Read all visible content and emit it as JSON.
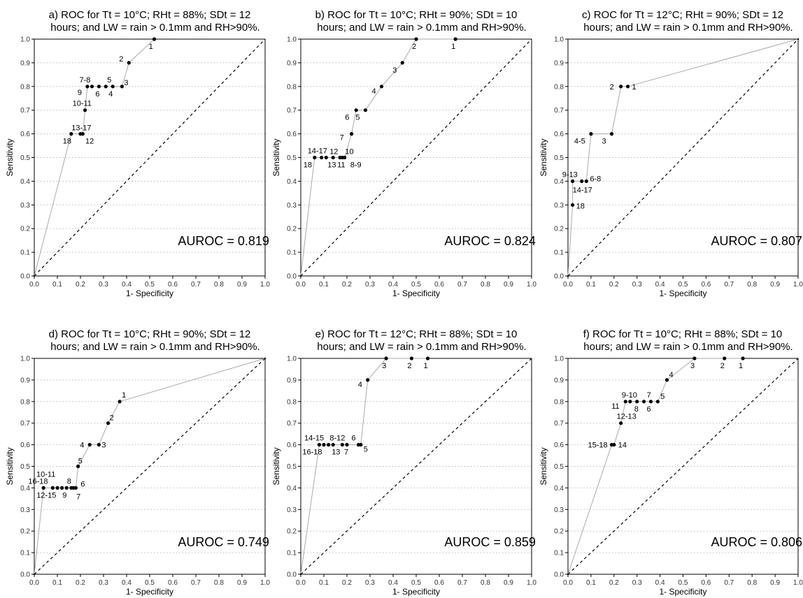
{
  "chart_data": [
    {
      "type": "scatter",
      "title_line1": "a) ROC for Tt = 10°C; RHt = 88%; SDt = 12",
      "title_line2": "hours; and LW = rain > 0.1mm and RH>90%.",
      "xlabel": "1- Specificity",
      "ylabel": "Sensitivity",
      "xlim": [
        0,
        1
      ],
      "ylim": [
        0,
        1
      ],
      "xticks": [
        "0.0",
        "0.1",
        "0.2",
        "0.3",
        "0.4",
        "0.5",
        "0.6",
        "0.7",
        "0.8",
        "0.9",
        "1.0"
      ],
      "yticks": [
        "0.0",
        "0.1",
        "0.2",
        "0.3",
        "0.4",
        "0.5",
        "0.6",
        "0.7",
        "0.8",
        "0.9",
        "1.0"
      ],
      "grid": "horizontal dotted",
      "auroc": "AUROC = 0.819",
      "points": [
        {
          "x": 0.0,
          "y": 0.0
        },
        {
          "x": 0.16,
          "y": 0.6,
          "label": "18"
        },
        {
          "x": 0.2,
          "y": 0.6,
          "label": "12"
        },
        {
          "x": 0.21,
          "y": 0.6,
          "label": "13-17"
        },
        {
          "x": 0.22,
          "y": 0.7,
          "label": "10-11"
        },
        {
          "x": 0.23,
          "y": 0.8,
          "label": "9"
        },
        {
          "x": 0.25,
          "y": 0.8,
          "label": "7-8"
        },
        {
          "x": 0.28,
          "y": 0.8,
          "label": "6"
        },
        {
          "x": 0.31,
          "y": 0.8,
          "label": "5"
        },
        {
          "x": 0.34,
          "y": 0.8,
          "label": "4"
        },
        {
          "x": 0.38,
          "y": 0.8,
          "label": "3"
        },
        {
          "x": 0.41,
          "y": 0.9,
          "label": "2"
        },
        {
          "x": 0.52,
          "y": 1.0,
          "label": "1"
        }
      ]
    },
    {
      "type": "scatter",
      "title_line1": "b) ROC for Tt = 10°C; RHt = 90%; SDt = 10",
      "title_line2": "hours; and LW = rain > 0.1mm and RH>90%.",
      "xlabel": "1- Specificity",
      "ylabel": "Sensitivity",
      "xlim": [
        0,
        1
      ],
      "ylim": [
        0,
        1
      ],
      "xticks": [
        "0.0",
        "0.1",
        "0.2",
        "0.3",
        "0.4",
        "0.5",
        "0.6",
        "0.7",
        "0.8",
        "0.9",
        "1.0"
      ],
      "yticks": [
        "0.0",
        "0.1",
        "0.2",
        "0.3",
        "0.4",
        "0.5",
        "0.6",
        "0.7",
        "0.8",
        "0.9",
        "1.0"
      ],
      "grid": "horizontal dotted",
      "auroc": "AUROC = 0.824",
      "points": [
        {
          "x": 0.0,
          "y": 0.0
        },
        {
          "x": 0.06,
          "y": 0.5,
          "label": "18"
        },
        {
          "x": 0.09,
          "y": 0.5,
          "label": "14-17"
        },
        {
          "x": 0.11,
          "y": 0.5,
          "label": "13"
        },
        {
          "x": 0.14,
          "y": 0.5,
          "label": "12"
        },
        {
          "x": 0.17,
          "y": 0.5,
          "label": "11"
        },
        {
          "x": 0.18,
          "y": 0.5,
          "label": "10"
        },
        {
          "x": 0.19,
          "y": 0.5,
          "label": "8-9"
        },
        {
          "x": 0.22,
          "y": 0.6,
          "label": "7"
        },
        {
          "x": 0.24,
          "y": 0.7,
          "label": "6"
        },
        {
          "x": 0.28,
          "y": 0.7,
          "label": "5"
        },
        {
          "x": 0.35,
          "y": 0.8,
          "label": "4"
        },
        {
          "x": 0.44,
          "y": 0.9,
          "label": "3"
        },
        {
          "x": 0.5,
          "y": 1.0,
          "label": "2"
        },
        {
          "x": 0.67,
          "y": 1.0,
          "label": "1"
        }
      ]
    },
    {
      "type": "scatter",
      "title_line1": "c) ROC for Tt = 12°C; RHt = 90%; SDt = 12",
      "title_line2": "hours; and LW = rain > 0.1mm and RH>90%.",
      "xlabel": "1- Specificity",
      "ylabel": "Sensitivity",
      "xlim": [
        0,
        1
      ],
      "ylim": [
        0,
        1
      ],
      "xticks": [
        "0.0",
        "0.1",
        "0.2",
        "0.3",
        "0.4",
        "0.5",
        "0.6",
        "0.7",
        "0.8",
        "0.9",
        "1.0"
      ],
      "yticks": [
        "0.0",
        "0.1",
        "0.2",
        "0.3",
        "0.4",
        "0.5",
        "0.6",
        "0.7",
        "0.8",
        "0.9",
        "1.0"
      ],
      "grid": "horizontal dotted",
      "auroc": "AUROC = 0.807",
      "points": [
        {
          "x": 0.0,
          "y": 0.0
        },
        {
          "x": 0.02,
          "y": 0.3,
          "label": "18"
        },
        {
          "x": 0.02,
          "y": 0.4,
          "label": "14-17"
        },
        {
          "x": 0.06,
          "y": 0.4,
          "label": "9-13"
        },
        {
          "x": 0.08,
          "y": 0.4,
          "label": "6-8"
        },
        {
          "x": 0.1,
          "y": 0.6,
          "label": "4-5"
        },
        {
          "x": 0.19,
          "y": 0.6,
          "label": "3"
        },
        {
          "x": 0.23,
          "y": 0.8,
          "label": "2"
        },
        {
          "x": 0.26,
          "y": 0.8,
          "label": "1"
        },
        {
          "x": 1.0,
          "y": 1.0
        }
      ]
    },
    {
      "type": "scatter",
      "title_line1": "d) ROC for Tt = 10°C; RHt = 90%; SDt = 12",
      "title_line2": "hours; and LW = rain > 0.1mm and RH>90%.",
      "xlabel": "1- Specificity",
      "ylabel": "Sensitivity",
      "xlim": [
        0,
        1
      ],
      "ylim": [
        0,
        1
      ],
      "xticks": [
        "0.0",
        "0.1",
        "0.2",
        "0.3",
        "0.4",
        "0.5",
        "0.6",
        "0.7",
        "0.8",
        "0.9",
        "1.0"
      ],
      "yticks": [
        "0.0",
        "0.1",
        "0.2",
        "0.3",
        "0.4",
        "0.5",
        "0.6",
        "0.7",
        "0.8",
        "0.9",
        "1.0"
      ],
      "grid": "horizontal dotted",
      "auroc": "AUROC = 0.749",
      "points": [
        {
          "x": 0.0,
          "y": 0.0
        },
        {
          "x": 0.04,
          "y": 0.4,
          "label": "12-15"
        },
        {
          "x": 0.08,
          "y": 0.4,
          "label": "16-18"
        },
        {
          "x": 0.1,
          "y": 0.4,
          "label": "10-11"
        },
        {
          "x": 0.12,
          "y": 0.4
        },
        {
          "x": 0.14,
          "y": 0.4,
          "label": "9"
        },
        {
          "x": 0.16,
          "y": 0.4,
          "label": "8"
        },
        {
          "x": 0.17,
          "y": 0.4,
          "label": "7"
        },
        {
          "x": 0.18,
          "y": 0.4,
          "label": "6"
        },
        {
          "x": 0.19,
          "y": 0.5,
          "label": "5"
        },
        {
          "x": 0.24,
          "y": 0.6,
          "label": "4"
        },
        {
          "x": 0.28,
          "y": 0.6,
          "label": "3"
        },
        {
          "x": 0.32,
          "y": 0.7,
          "label": "2"
        },
        {
          "x": 0.37,
          "y": 0.8,
          "label": "1"
        },
        {
          "x": 1.0,
          "y": 1.0
        }
      ]
    },
    {
      "type": "scatter",
      "title_line1": "e) ROC for Tt = 12°C; RHt = 88%; SDt = 10",
      "title_line2": "hours; and LW = rain > 0.1mm and RH>90%.",
      "xlabel": "1- Specificity",
      "ylabel": "Sensitivity",
      "xlim": [
        0,
        1
      ],
      "ylim": [
        0,
        1
      ],
      "xticks": [
        "0.0",
        "0.1",
        "0.2",
        "0.3",
        "0.4",
        "0.5",
        "0.6",
        "0.7",
        "0.8",
        "0.9",
        "1.0"
      ],
      "yticks": [
        "0.0",
        "0.1",
        "0.2",
        "0.3",
        "0.4",
        "0.5",
        "0.6",
        "0.7",
        "0.8",
        "0.9",
        "1.0"
      ],
      "grid": "horizontal dotted",
      "auroc": "AUROC = 0.859",
      "points": [
        {
          "x": 0.0,
          "y": 0.0
        },
        {
          "x": 0.08,
          "y": 0.6,
          "label": "16-18"
        },
        {
          "x": 0.1,
          "y": 0.6,
          "label": "14-15"
        },
        {
          "x": 0.12,
          "y": 0.6
        },
        {
          "x": 0.14,
          "y": 0.6,
          "label": "13"
        },
        {
          "x": 0.18,
          "y": 0.6,
          "label": "8-12"
        },
        {
          "x": 0.2,
          "y": 0.6,
          "label": "7"
        },
        {
          "x": 0.25,
          "y": 0.6,
          "label": "6"
        },
        {
          "x": 0.26,
          "y": 0.6,
          "label": "5"
        },
        {
          "x": 0.29,
          "y": 0.9,
          "label": "4"
        },
        {
          "x": 0.37,
          "y": 1.0,
          "label": "3"
        },
        {
          "x": 0.48,
          "y": 1.0,
          "label": "2"
        },
        {
          "x": 0.55,
          "y": 1.0,
          "label": "1"
        }
      ]
    },
    {
      "type": "scatter",
      "title_line1": "f) ROC for Tt = 10°C; RHt = 88%; SDt = 10",
      "title_line2": "hours; and LW = rain > 0.1mm and RH>90%.",
      "xlabel": "1- Specificity",
      "ylabel": "Sensitivity",
      "xlim": [
        0,
        1
      ],
      "ylim": [
        0,
        1
      ],
      "xticks": [
        "0.0",
        "0.1",
        "0.2",
        "0.3",
        "0.4",
        "0.5",
        "0.6",
        "0.7",
        "0.8",
        "0.9",
        "1.0"
      ],
      "yticks": [
        "0.0",
        "0.1",
        "0.2",
        "0.3",
        "0.4",
        "0.5",
        "0.6",
        "0.7",
        "0.8",
        "0.9",
        "1.0"
      ],
      "grid": "horizontal dotted",
      "auroc": "AUROC = 0.806",
      "points": [
        {
          "x": 0.0,
          "y": 0.0
        },
        {
          "x": 0.19,
          "y": 0.6,
          "label": "15-18"
        },
        {
          "x": 0.2,
          "y": 0.6,
          "label": "14"
        },
        {
          "x": 0.23,
          "y": 0.7,
          "label": "12-13"
        },
        {
          "x": 0.25,
          "y": 0.8,
          "label": "11"
        },
        {
          "x": 0.27,
          "y": 0.8,
          "label": "9-10"
        },
        {
          "x": 0.3,
          "y": 0.8,
          "label": "8"
        },
        {
          "x": 0.33,
          "y": 0.8,
          "label": "7"
        },
        {
          "x": 0.36,
          "y": 0.8,
          "label": "6"
        },
        {
          "x": 0.39,
          "y": 0.8,
          "label": "5"
        },
        {
          "x": 0.43,
          "y": 0.9,
          "label": "4"
        },
        {
          "x": 0.55,
          "y": 1.0,
          "label": "3"
        },
        {
          "x": 0.68,
          "y": 1.0,
          "label": "2"
        },
        {
          "x": 0.76,
          "y": 1.0,
          "label": "1"
        }
      ]
    }
  ]
}
